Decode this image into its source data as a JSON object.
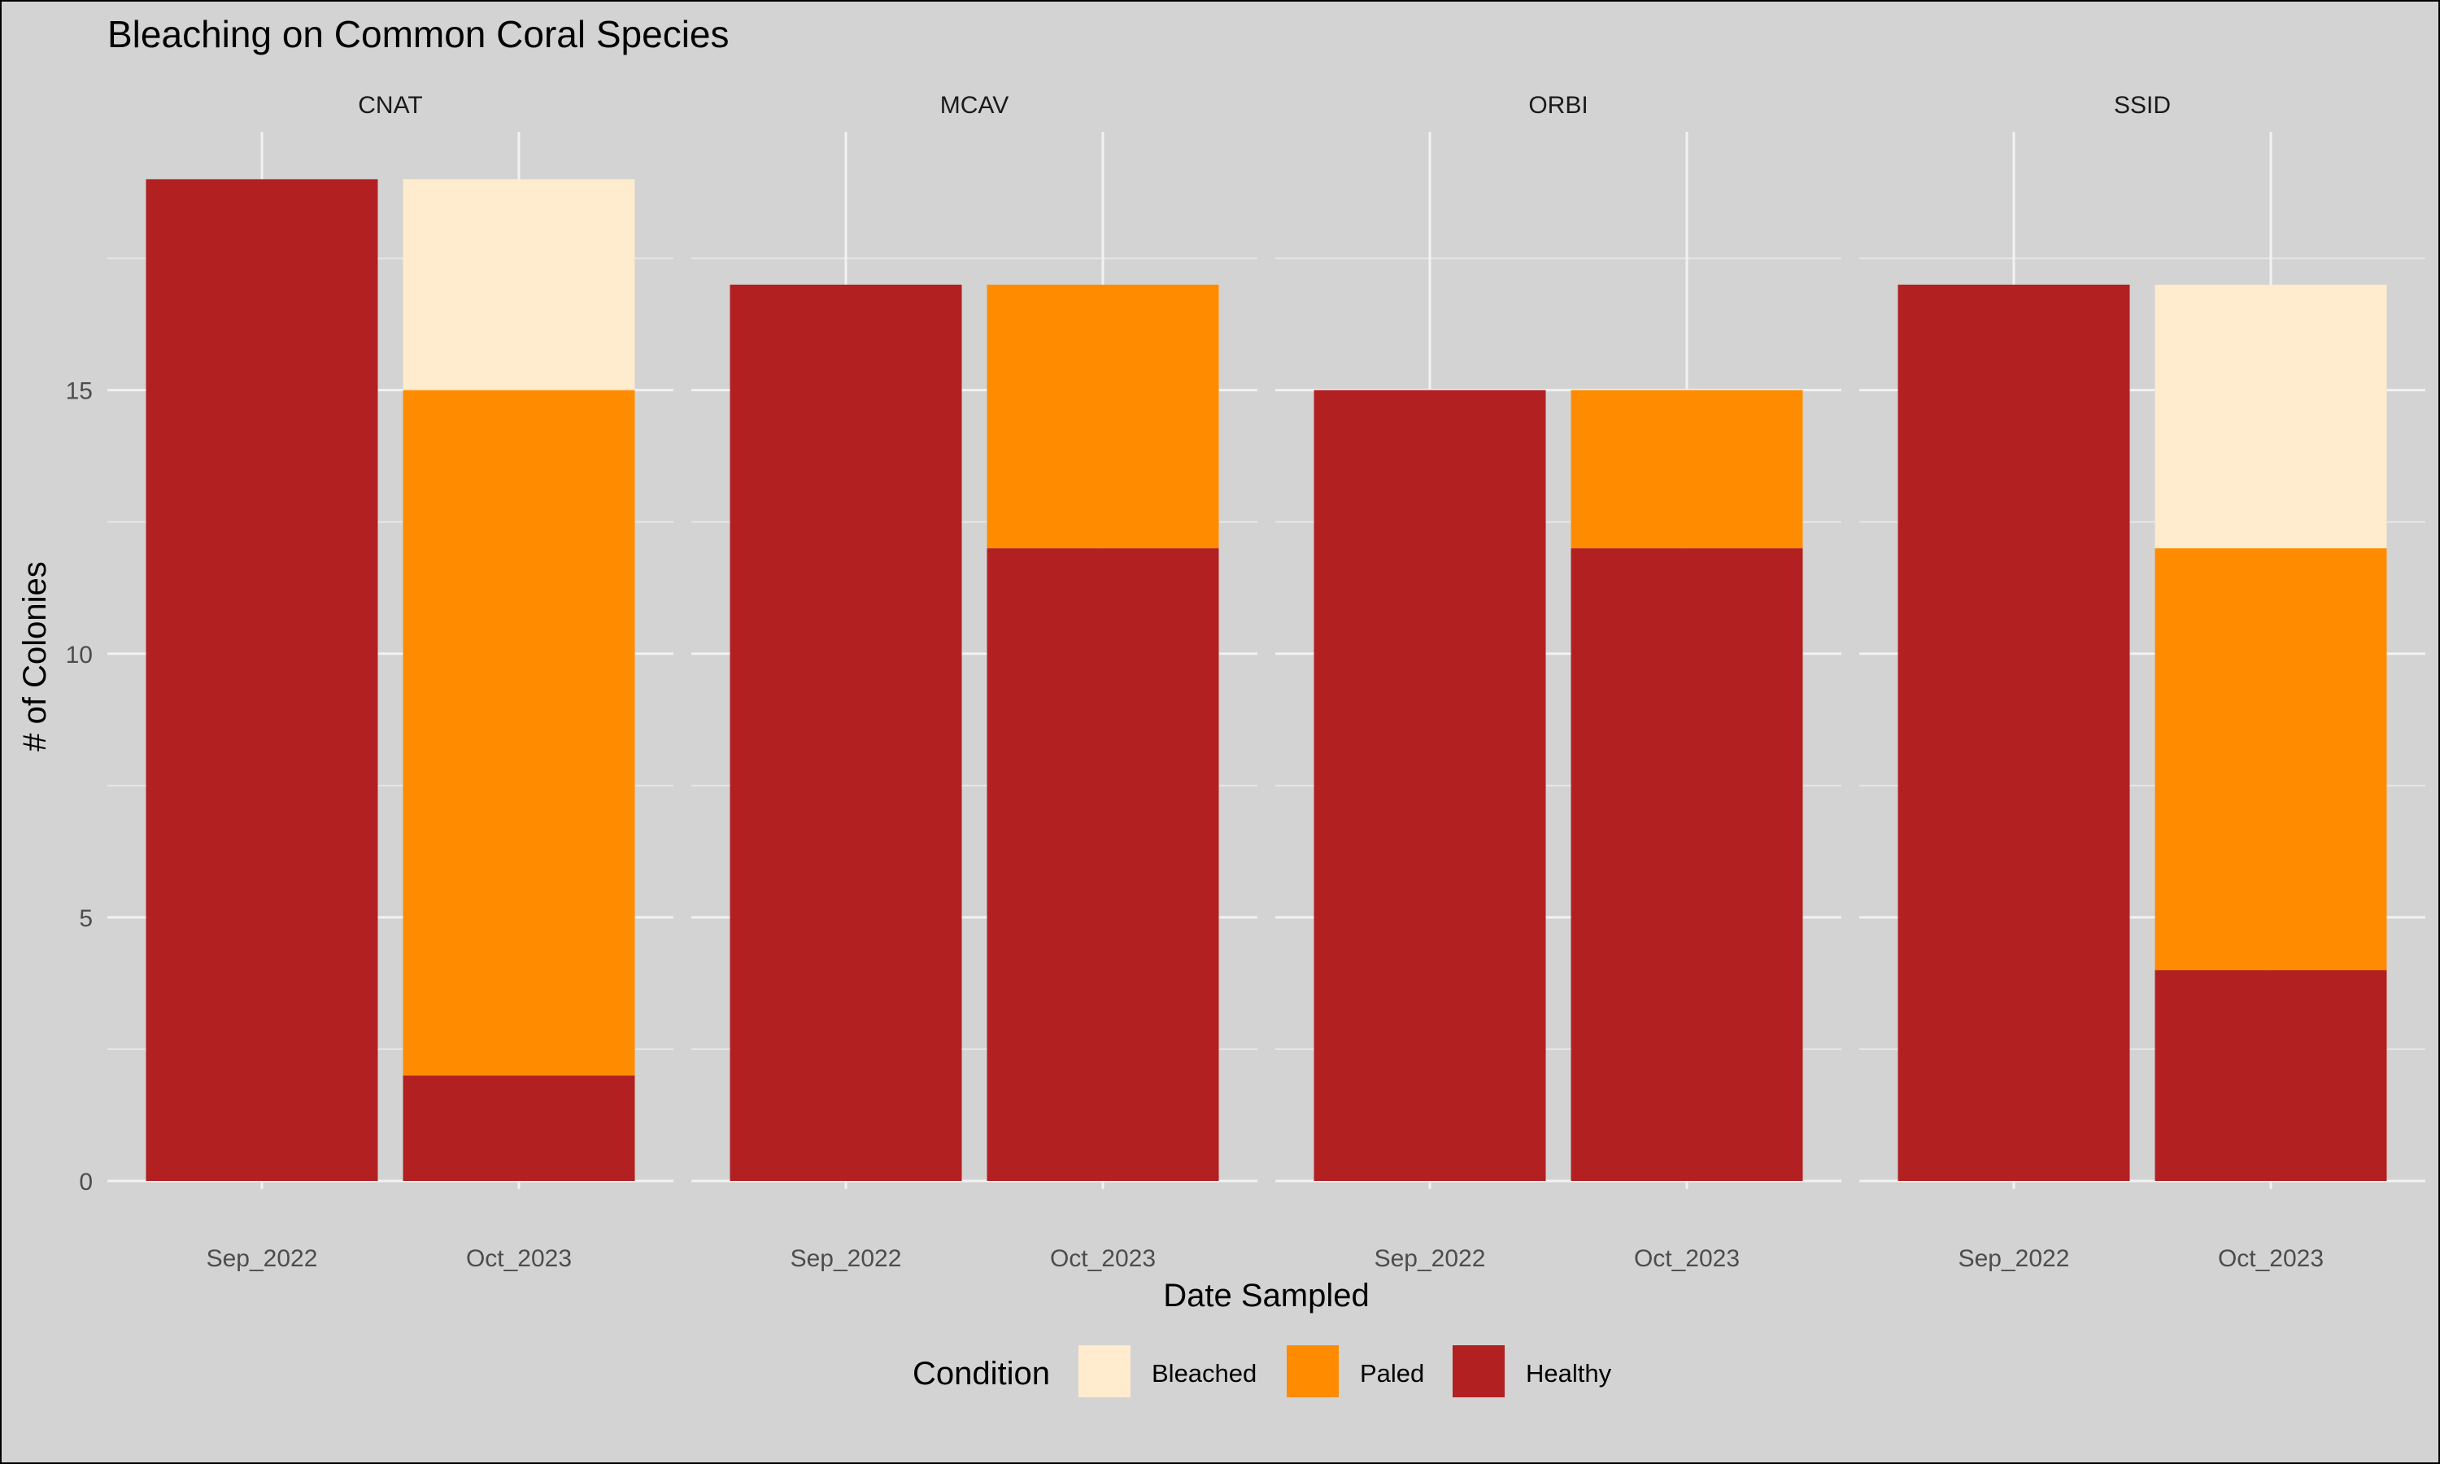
{
  "chart_data": {
    "type": "bar",
    "stacked": true,
    "title": "Bleaching on Common Coral Species",
    "xlabel": "Date Sampled",
    "ylabel": "# of Colonies",
    "ylim": [
      0,
      19.9
    ],
    "yticks": [
      0,
      5,
      10,
      15
    ],
    "grid": true,
    "facets": [
      "CNAT",
      "MCAV",
      "ORBI",
      "SSID"
    ],
    "categories": [
      "Sep_2022",
      "Oct_2023"
    ],
    "legend": {
      "title": "Condition",
      "position": "bottom",
      "entries": [
        "Bleached",
        "Paled",
        "Healthy"
      ]
    },
    "series": [
      {
        "name": "Healthy",
        "color": "#b22022",
        "values": {
          "CNAT": [
            19,
            2
          ],
          "MCAV": [
            17,
            12
          ],
          "ORBI": [
            15,
            12
          ],
          "SSID": [
            17,
            4
          ]
        }
      },
      {
        "name": "Paled",
        "color": "#ff8c00",
        "values": {
          "CNAT": [
            0,
            13
          ],
          "MCAV": [
            0,
            5
          ],
          "ORBI": [
            0,
            3
          ],
          "SSID": [
            0,
            8
          ]
        }
      },
      {
        "name": "Bleached",
        "color": "#ffebcd",
        "values": {
          "CNAT": [
            0,
            4
          ],
          "MCAV": [
            0,
            0
          ],
          "ORBI": [
            0,
            0
          ],
          "SSID": [
            0,
            5
          ]
        }
      }
    ]
  }
}
